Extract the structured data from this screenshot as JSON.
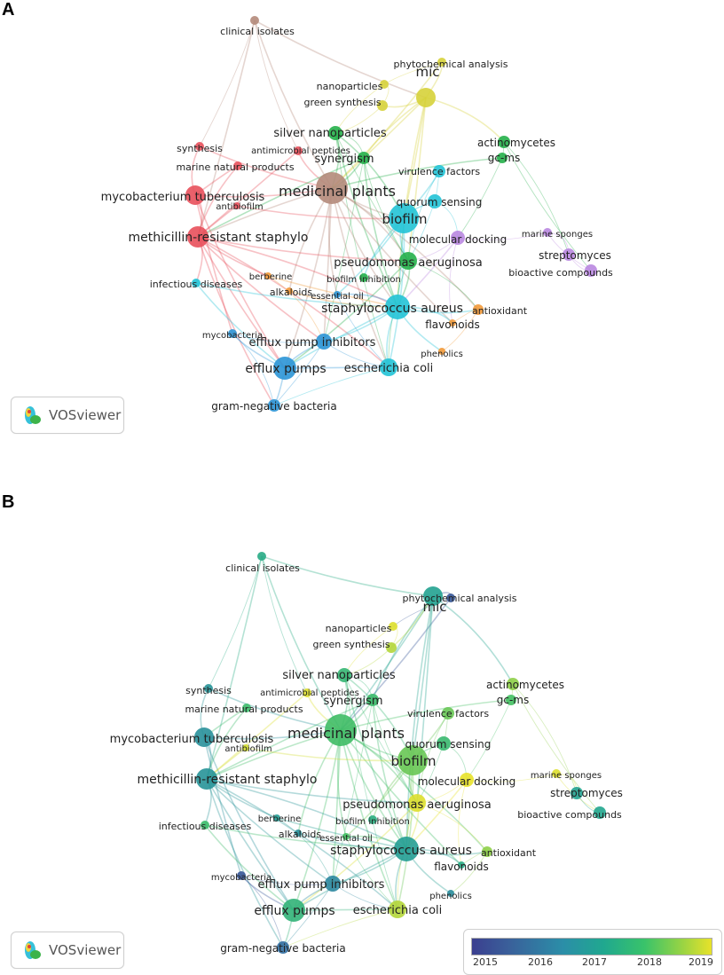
{
  "panels": {
    "a": {
      "letter": "A"
    },
    "b": {
      "letter": "B"
    }
  },
  "vosviewer": {
    "label": "VOSviewer"
  },
  "legend": {
    "ticks": [
      "2015",
      "2016",
      "2017",
      "2018",
      "2019"
    ]
  },
  "colors": {
    "clusterA": {
      "red": "#e8505b",
      "brown": "#b48a7a",
      "yellow": "#d6d23a",
      "green": "#25b04a",
      "cyan": "#22c3d6",
      "purple": "#b987e0",
      "orange": "#f29a3a",
      "blue": "#2b95d6"
    },
    "yearScale": [
      "#3b3f8f",
      "#2f7aa6",
      "#21a68e",
      "#42c061",
      "#c7da33",
      "#e8e22a"
    ]
  },
  "network": {
    "nodes": [
      {
        "id": "clinical",
        "label": "clinical isolates",
        "cluster": "brown",
        "year": 2017.2
      },
      {
        "id": "phyto",
        "label": "phytochemical analysis",
        "cluster": "yellow",
        "year": 2015.4
      },
      {
        "id": "nano",
        "label": "nanoparticles",
        "cluster": "yellow",
        "year": 2018.9
      },
      {
        "id": "green",
        "label": "green synthesis",
        "cluster": "yellow",
        "year": 2018.6
      },
      {
        "id": "mic",
        "label": "mic",
        "cluster": "yellow",
        "year": 2016.9
      },
      {
        "id": "silver",
        "label": "silver nanoparticles",
        "cluster": "green",
        "year": 2017.6
      },
      {
        "id": "actino",
        "label": "actinomycetes",
        "cluster": "green",
        "year": 2018.4
      },
      {
        "id": "synthesis",
        "label": "synthesis",
        "cluster": "red",
        "year": 2016.6
      },
      {
        "id": "amp",
        "label": "antimicrobial peptides",
        "cluster": "red",
        "year": 2018.9
      },
      {
        "id": "synergism",
        "label": "synergism",
        "cluster": "green",
        "year": 2017.8
      },
      {
        "id": "gcms",
        "label": "gc-ms",
        "cluster": "green",
        "year": 2018.0
      },
      {
        "id": "marine",
        "label": "marine natural products",
        "cluster": "red",
        "year": 2017.8
      },
      {
        "id": "virulence",
        "label": "virulence factors",
        "cluster": "cyan",
        "year": 2018.2
      },
      {
        "id": "mtb",
        "label": "mycobacterium tuberculosis",
        "cluster": "red",
        "year": 2016.5
      },
      {
        "id": "medicinal",
        "label": "medicinal plants",
        "cluster": "brown",
        "year": 2017.9
      },
      {
        "id": "antibiofilm",
        "label": "antibiofilm",
        "cluster": "red",
        "year": 2018.8
      },
      {
        "id": "quorum",
        "label": "quorum sensing",
        "cluster": "cyan",
        "year": 2017.7
      },
      {
        "id": "biofilm",
        "label": "biofilm",
        "cluster": "cyan",
        "year": 2018.2
      },
      {
        "id": "mrsa",
        "label": "methicillin-resistant staphylo",
        "cluster": "red",
        "year": 2016.6
      },
      {
        "id": "sponges",
        "label": "marine sponges",
        "cluster": "purple",
        "year": 2018.9
      },
      {
        "id": "docking",
        "label": "molecular docking",
        "cluster": "purple",
        "year": 2019.0
      },
      {
        "id": "strepto",
        "label": "streptomyces",
        "cluster": "purple",
        "year": 2016.9
      },
      {
        "id": "pseudo",
        "label": "pseudomonas aeruginosa",
        "cluster": "green",
        "year": 2018.9
      },
      {
        "id": "bioactive",
        "label": "bioactive compounds",
        "cluster": "purple",
        "year": 2017.0
      },
      {
        "id": "infectious",
        "label": "infectious diseases",
        "cluster": "cyan",
        "year": 2017.8
      },
      {
        "id": "berberine",
        "label": "berberine",
        "cluster": "orange",
        "year": 2016.8
      },
      {
        "id": "bioinhib",
        "label": "biofilm inhibition",
        "cluster": "green",
        "year": 2017.3
      },
      {
        "id": "alkaloids",
        "label": "alkaloids",
        "cluster": "orange",
        "year": 2016.5
      },
      {
        "id": "essential",
        "label": "essential oil",
        "cluster": "blue",
        "year": 2018.0
      },
      {
        "id": "saureus",
        "label": "staphylococcus aureus",
        "cluster": "cyan",
        "year": 2016.8
      },
      {
        "id": "antioxidant",
        "label": "antioxidant",
        "cluster": "orange",
        "year": 2018.4
      },
      {
        "id": "flavonoids",
        "label": "flavonoids",
        "cluster": "orange",
        "year": 2017.2
      },
      {
        "id": "mycobacteria",
        "label": "mycobacteria",
        "cluster": "blue",
        "year": 2015.4
      },
      {
        "id": "effluxinh",
        "label": "efflux pump inhibitors",
        "cluster": "blue",
        "year": 2016.3
      },
      {
        "id": "phenolics",
        "label": "phenolics",
        "cluster": "orange",
        "year": 2016.4
      },
      {
        "id": "effluxpumps",
        "label": "efflux pumps",
        "cluster": "blue",
        "year": 2017.5
      },
      {
        "id": "ecoli",
        "label": "escherichia coli",
        "cluster": "cyan",
        "year": 2018.6
      },
      {
        "id": "gramneg",
        "label": "gram-negative bacteria",
        "cluster": "blue",
        "year": 2015.8
      }
    ]
  }
}
